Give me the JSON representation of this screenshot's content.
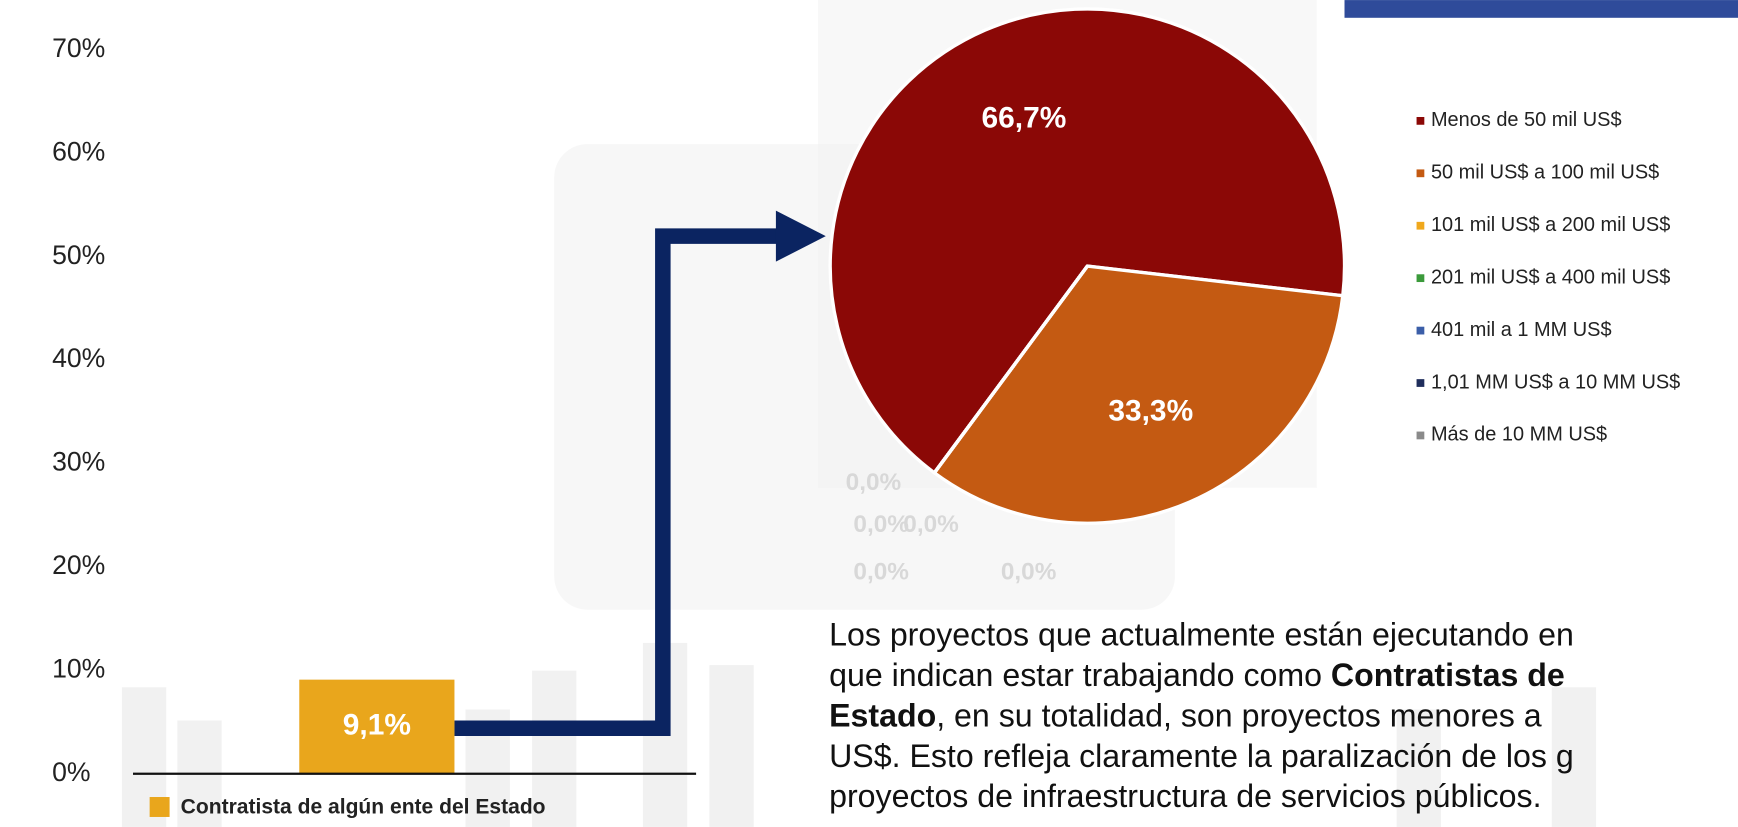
{
  "chart_data": [
    {
      "type": "bar",
      "categories": [
        null
      ],
      "series": [
        {
          "name": "Contratista de algún ente del Estado",
          "color": "#e9a61c",
          "values": [
            9.1
          ],
          "value_labels": [
            "9,1%"
          ]
        }
      ],
      "ylim": [
        0,
        70
      ],
      "yticks": [
        {
          "value": 0,
          "label": "0%"
        },
        {
          "value": 10,
          "label": "10%"
        },
        {
          "value": 20,
          "label": "20%"
        },
        {
          "value": 30,
          "label": "30%"
        },
        {
          "value": 40,
          "label": "40%"
        },
        {
          "value": 50,
          "label": "50%"
        },
        {
          "value": 60,
          "label": "60%"
        },
        {
          "value": 70,
          "label": "70%"
        }
      ]
    },
    {
      "type": "pie",
      "categories": [
        "Menos de 50 mil US$",
        "50 mil US$ a 100 mil US$",
        "101 mil US$ a 200 mil US$",
        "201 mil US$ a 400 mil US$",
        "401 mil a 1 MM US$",
        "1,01 MM US$ a 10 MM US$",
        "Más de 10 MM US$"
      ],
      "values": [
        66.7,
        33.3,
        0,
        0,
        0,
        0,
        0
      ],
      "value_labels": [
        "66,7%",
        "33,3%",
        "0,0%",
        "0,0%",
        "0,0%",
        "0,0%",
        "0,0%"
      ],
      "colors": [
        "#8b0806",
        "#c45a12",
        "#f0a81c",
        "#3b9a3b",
        "#3b5ea8",
        "#1f2e5c",
        "#8a8a8a"
      ]
    }
  ],
  "text": {
    "lines": [
      [
        {
          "text": "Los proyectos que actualmente están ejecutando en",
          "bold": false
        }
      ],
      [
        {
          "text": "que indican estar trabajando como ",
          "bold": false
        },
        {
          "text": "Contratistas de",
          "bold": true
        }
      ],
      [
        {
          "text": "Estado",
          "bold": true
        },
        {
          "text": ",  en su totalidad, son proyectos menores a",
          "bold": false
        }
      ],
      [
        {
          "text": "US$. Esto refleja claramente la paralización de los g",
          "bold": false
        }
      ],
      [
        {
          "text": "proyectos de infraestructura de servicios públicos.",
          "bold": false
        }
      ]
    ]
  }
}
